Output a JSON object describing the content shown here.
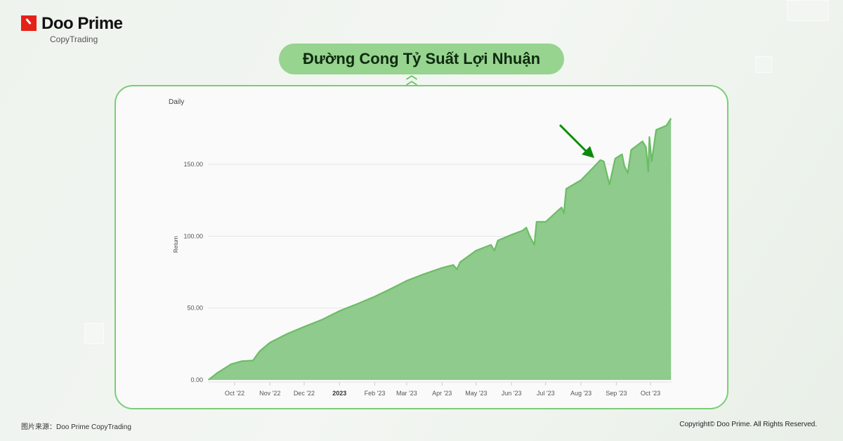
{
  "brand": {
    "name": "Doo Prime",
    "sub": "CopyTrading"
  },
  "title": "Đường Cong Tỷ Suất Lợi Nhuận",
  "footer": {
    "source": "图片来源：Doo Prime CopyTrading",
    "copyright": "Copyright© Doo Prime. All Rights Reserved."
  },
  "colors": {
    "area": "#8fcb8c",
    "line": "#6cbc67",
    "accent": "#96d48f",
    "arrow": "#0a8a0a",
    "brand": "#e32119"
  },
  "chart_data": {
    "type": "area",
    "title": "Daily",
    "ylabel": "Return",
    "ylim": [
      0,
      182
    ],
    "yticks": [
      "0.00",
      "50.00",
      "100.00",
      "150.00"
    ],
    "ytick_values": [
      0,
      50,
      100,
      150
    ],
    "xticks": [
      {
        "label": "Oct '22",
        "date": "2022-10-01"
      },
      {
        "label": "Nov '22",
        "date": "2022-11-01"
      },
      {
        "label": "Dec '22",
        "date": "2022-12-01"
      },
      {
        "label": "2023",
        "date": "2023-01-01",
        "bold": true
      },
      {
        "label": "Feb '23",
        "date": "2023-02-01"
      },
      {
        "label": "Mar '23",
        "date": "2023-03-01"
      },
      {
        "label": "Apr '23",
        "date": "2023-04-01"
      },
      {
        "label": "May '23",
        "date": "2023-05-01"
      },
      {
        "label": "Jun '23",
        "date": "2023-06-01"
      },
      {
        "label": "Jul '23",
        "date": "2023-07-01"
      },
      {
        "label": "Aug '23",
        "date": "2023-08-01"
      },
      {
        "label": "Sep '23",
        "date": "2023-09-01"
      },
      {
        "label": "Oct '23",
        "date": "2023-10-01"
      }
    ],
    "grid": true,
    "annotation": "arrow pointing to curve near Aug '23 at ~150",
    "x": [
      "2022-09-08",
      "2022-09-16",
      "2022-09-28",
      "2022-10-07",
      "2022-10-17",
      "2022-10-23",
      "2022-11-01",
      "2022-11-16",
      "2022-12-01",
      "2022-12-17",
      "2023-01-01",
      "2023-01-17",
      "2023-02-01",
      "2023-02-14",
      "2023-03-01",
      "2023-03-14",
      "2023-04-01",
      "2023-04-11",
      "2023-04-14",
      "2023-04-17",
      "2023-05-01",
      "2023-05-14",
      "2023-05-17",
      "2023-05-20",
      "2023-06-01",
      "2023-06-11",
      "2023-06-14",
      "2023-06-17",
      "2023-06-21",
      "2023-06-23",
      "2023-07-01",
      "2023-07-12",
      "2023-07-15",
      "2023-07-17",
      "2023-07-19",
      "2023-08-01",
      "2023-08-12",
      "2023-08-18",
      "2023-08-21",
      "2023-08-26",
      "2023-08-31",
      "2023-09-06",
      "2023-09-08",
      "2023-09-11",
      "2023-09-14",
      "2023-09-24",
      "2023-09-27",
      "2023-09-29",
      "2023-09-30",
      "2023-10-02",
      "2023-10-06",
      "2023-10-15",
      "2023-10-19"
    ],
    "values": [
      0,
      5,
      11,
      13,
      13.5,
      20,
      26,
      32,
      37,
      42,
      48,
      53,
      58,
      63,
      69,
      73,
      78,
      80,
      77,
      82,
      90,
      94,
      90,
      97,
      101,
      104,
      106,
      100,
      94,
      110,
      110,
      118,
      120,
      116,
      133,
      139,
      148,
      153,
      152,
      136,
      154,
      157,
      149,
      144,
      160,
      166,
      162,
      145,
      169,
      152,
      174,
      177,
      182
    ]
  }
}
